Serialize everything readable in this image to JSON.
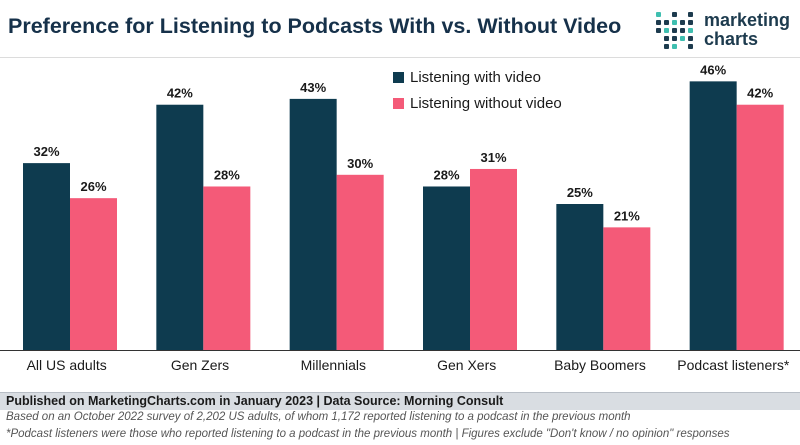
{
  "title": "Preference for Listening to Podcasts With vs. Without Video",
  "logo": {
    "line1": "marketing",
    "line2": "charts"
  },
  "source": "Published on MarketingCharts.com in January 2023 | Data Source: Morning Consult",
  "notes": [
    "Based on an October 2022 survey of 2,202 US adults, of whom 1,172 reported listening to a podcast in the previous month",
    "*Podcast listeners were those who reported listening to a podcast in the previous month | Figures exclude \"Don't know / no opinion\" responses"
  ],
  "colors": {
    "with_video": "#0e3b4f",
    "without_video": "#f45a78",
    "title": "#16314a",
    "logo_dots_dark": "#1d3b4e",
    "logo_dots_teal": "#3fbfb0"
  },
  "chart_data": {
    "type": "bar",
    "categories": [
      "All US adults",
      "Gen Zers",
      "Millennials",
      "Gen Xers",
      "Baby Boomers",
      "Podcast listeners*"
    ],
    "series": [
      {
        "name": "Listening with video",
        "values": [
          32,
          42,
          43,
          28,
          25,
          46
        ],
        "labels": [
          "32%",
          "42%",
          "43%",
          "28%",
          "25%",
          "46%"
        ]
      },
      {
        "name": "Listening without video",
        "values": [
          26,
          28,
          30,
          31,
          21,
          42
        ],
        "labels": [
          "26%",
          "28%",
          "30%",
          "31%",
          "21%",
          "42%"
        ]
      }
    ],
    "ylim": [
      0,
      50
    ],
    "legend_position": "top-center",
    "grid": false
  }
}
